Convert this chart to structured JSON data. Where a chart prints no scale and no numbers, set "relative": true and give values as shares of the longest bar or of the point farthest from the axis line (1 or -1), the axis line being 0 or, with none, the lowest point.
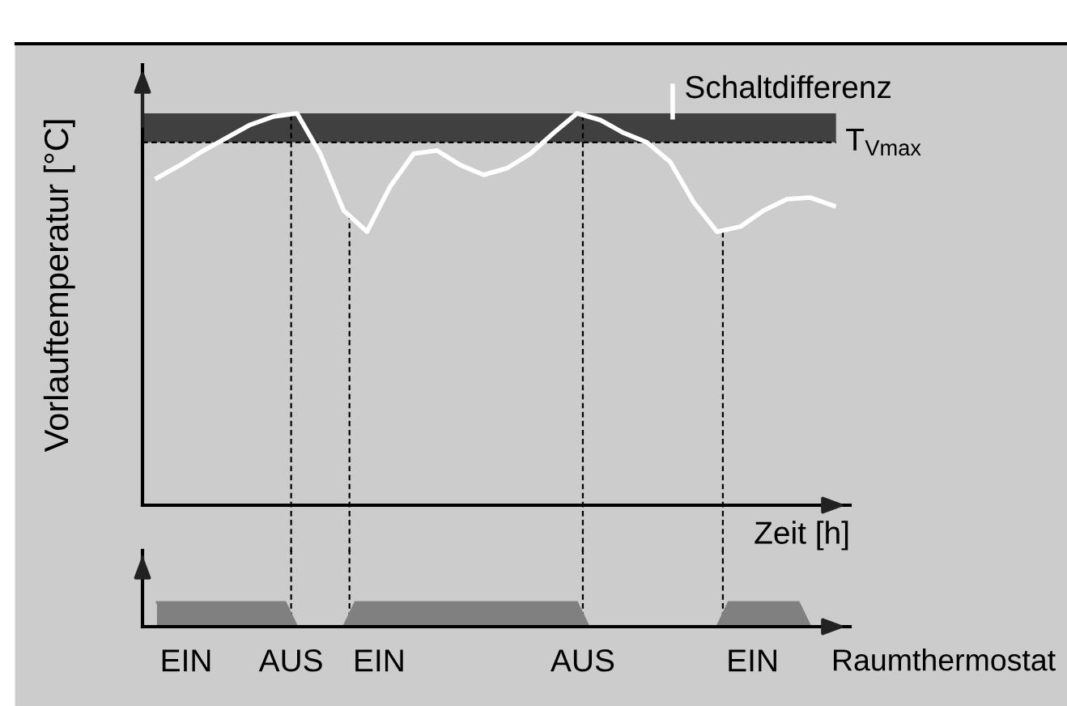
{
  "chart_data": [
    {
      "type": "line",
      "relative": true,
      "ylabel": "Vorlauftemperatur [°C]",
      "xlabel": "Zeit [h]",
      "categories": [
        null,
        null,
        null,
        null,
        null,
        null,
        null,
        null,
        null,
        null,
        null,
        null,
        null,
        null,
        null,
        null,
        null,
        null,
        null,
        null,
        null,
        null,
        null,
        null,
        null,
        null,
        null,
        null,
        null,
        null
      ],
      "series": [
        {
          "color": "#ffffff",
          "values": [
            0.835,
            0.868,
            0.905,
            0.938,
            0.971,
            0.992,
            1.0,
            0.897,
            0.752,
            0.698,
            0.814,
            0.897,
            0.905,
            0.868,
            0.843,
            0.86,
            0.897,
            0.95,
            1.0,
            0.983,
            0.95,
            0.926,
            0.876,
            0.773,
            0.698,
            0.711,
            0.752,
            0.781,
            0.785,
            0.764
          ]
        }
      ],
      "bands": [
        {
          "axis": "y",
          "from": 0.926,
          "to": 1.0,
          "label": "Schaltdifferenz",
          "color": "#404040"
        }
      ],
      "ref_lines": [
        {
          "axis": "y",
          "value": 0.926,
          "label": "T$_{Vmax}$",
          "color": "#000000",
          "line_style": "dashed"
        }
      ]
    },
    {
      "type": "area",
      "relative": true,
      "xlabel": "Raumthermostat",
      "categories": [
        null,
        null,
        null,
        null,
        null,
        null,
        null,
        null,
        null,
        null,
        null,
        null,
        null,
        null,
        null,
        null,
        null,
        null,
        null,
        null,
        null,
        null,
        null,
        null,
        null,
        null,
        null,
        null,
        null,
        null,
        null,
        null,
        null,
        null,
        null,
        null,
        null,
        null,
        null,
        null,
        null,
        null,
        null,
        null,
        null,
        null,
        null,
        null,
        null,
        null,
        null,
        null,
        null,
        null,
        null,
        null,
        null,
        null,
        null
      ],
      "values": [
        1,
        1,
        1,
        1,
        1,
        1,
        1,
        1,
        1,
        1,
        1,
        1,
        0,
        0,
        0,
        0,
        0,
        1,
        1,
        1,
        1,
        1,
        1,
        1,
        1,
        1,
        1,
        1,
        1,
        1,
        1,
        1,
        1,
        1,
        1,
        1,
        1,
        0,
        0,
        0,
        0,
        0,
        0,
        0,
        0,
        0,
        0,
        0,
        0,
        1,
        1,
        1,
        1,
        1,
        1,
        1,
        0,
        0,
        0
      ],
      "color": "#808080",
      "annotations": [
        "EIN",
        "AUS",
        "EIN",
        "AUS",
        "EIN"
      ]
    }
  ]
}
